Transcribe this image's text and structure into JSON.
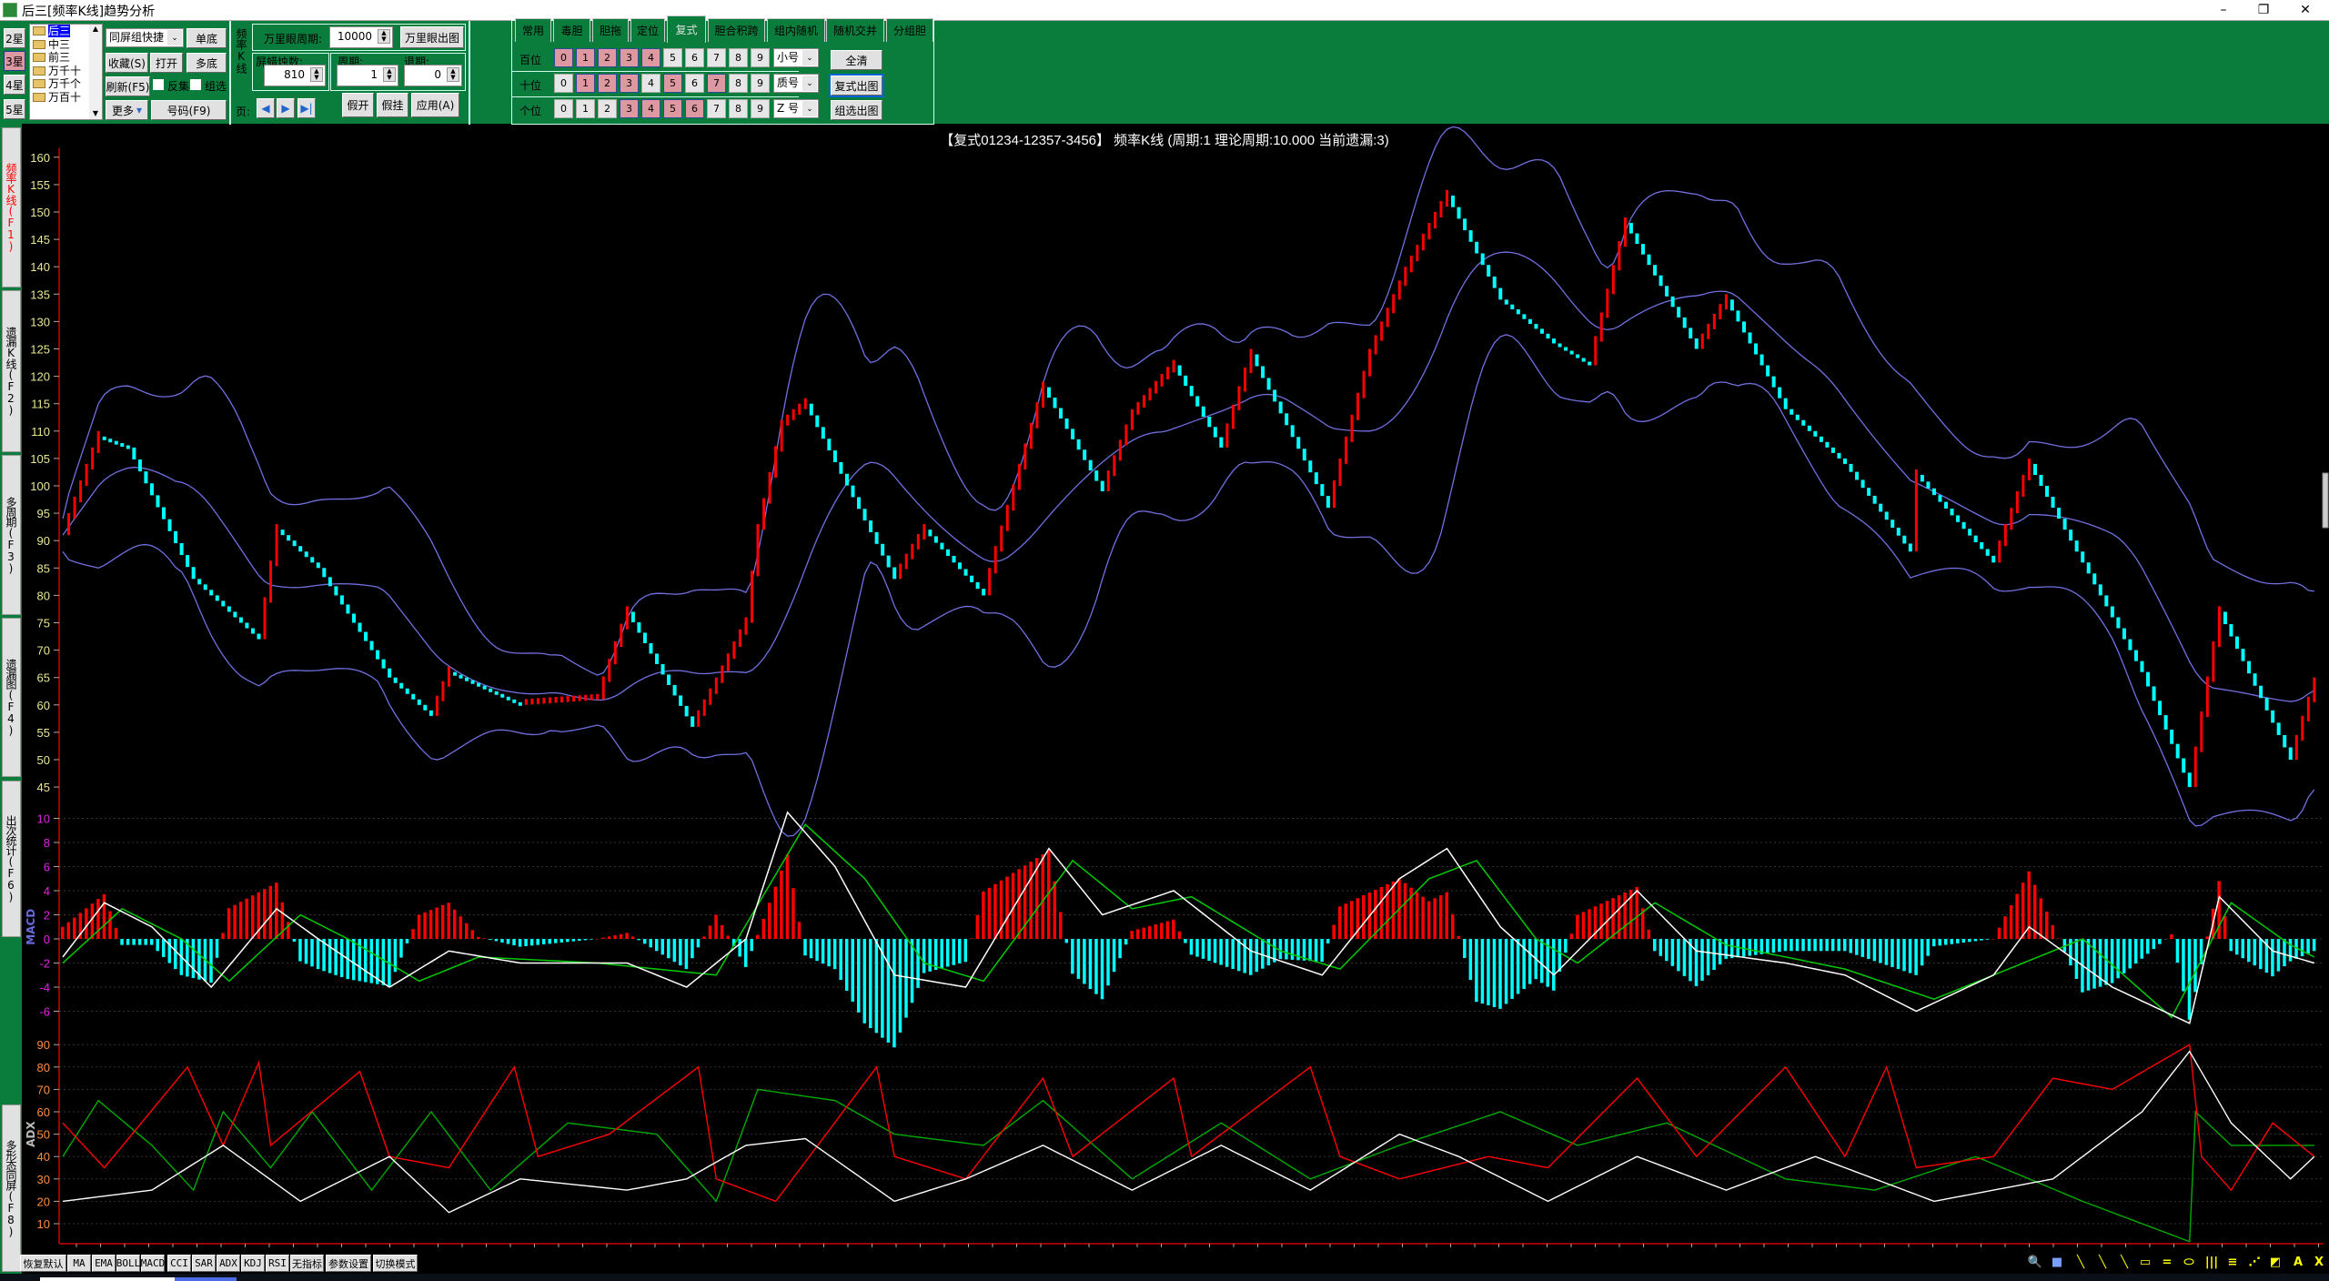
{
  "window": {
    "title": "后三[频率K线]趋势分析",
    "minimize": "–",
    "restore": "❐",
    "close": "✕"
  },
  "left_panel": {
    "stars": [
      {
        "label": "2星",
        "selected": false
      },
      {
        "label": "3星",
        "selected": true
      },
      {
        "label": "4星",
        "selected": false
      },
      {
        "label": "5星",
        "selected": false
      }
    ],
    "positions": [
      {
        "label": "后三",
        "selected": true
      },
      {
        "label": "中三"
      },
      {
        "label": "前三"
      },
      {
        "label": "万千十"
      },
      {
        "label": "万千个"
      },
      {
        "label": "万百十"
      }
    ],
    "group_dropdown": "同屏组快捷",
    "single_base": "单底",
    "favorite": "收藏(S)",
    "open": "打开",
    "multi_base": "多底",
    "refresh": "刷新(F5)",
    "inverse_set": "反集",
    "group_select": "组选",
    "more": "更多",
    "numbers": "号码(F9)"
  },
  "kline_panel": {
    "vertical_title": "频率K线",
    "telescope_period_label": "万里眼周期:",
    "telescope_period": "10000",
    "telescope_chart": "万里眼出图",
    "candles_label": "屏蜡烛数:",
    "candles": "810",
    "period_label": "周期:",
    "period": "1",
    "back_label": "退期:",
    "back": "0",
    "page_label": "页:",
    "fake_open": "假开",
    "fake_hang": "假挂",
    "apply": "应用(A)"
  },
  "tabs": [
    {
      "label": "常用"
    },
    {
      "label": "毒胆"
    },
    {
      "label": "胆拖"
    },
    {
      "label": "定位"
    },
    {
      "label": "复式",
      "active": true
    },
    {
      "label": "胆合积跨"
    },
    {
      "label": "组内随机"
    },
    {
      "label": "随机交并"
    },
    {
      "label": "分组胆"
    }
  ],
  "digit_rows": [
    {
      "label": "百位",
      "selected": [
        0,
        1,
        2,
        3,
        4
      ],
      "filter": "小号"
    },
    {
      "label": "十位",
      "selected": [
        1,
        2,
        3,
        5,
        7
      ],
      "filter": "质号"
    },
    {
      "label": "个位",
      "selected": [
        3,
        4,
        5,
        6
      ],
      "filter": "Z 号"
    }
  ],
  "digits": [
    "0",
    "1",
    "2",
    "3",
    "4",
    "5",
    "6",
    "7",
    "8",
    "9"
  ],
  "actions": {
    "clear_all": "全清",
    "compound_chart": "复式出图",
    "group_chart": "组选出图"
  },
  "side_tabs": [
    {
      "label": "频率K线(F1)",
      "active": true
    },
    {
      "label": "遗漏K线(F2)"
    },
    {
      "label": "多周期(F3)"
    },
    {
      "label": "遗漏图(F4)"
    },
    {
      "label": "出次统计(F6)"
    },
    {
      "label": "多形态同屏(F8)"
    }
  ],
  "chart_title": "【复式01234-12357-3456】 频率K线 (周期:1 理论周期:10.000 当前遗漏:3)",
  "colors": {
    "panel_green": "#0a7d3c",
    "up": "#ff0000",
    "down": "#00ffff",
    "band": "#7070e0",
    "dif": "#ffffff",
    "dea": "#00cc00",
    "adx": "#ffffff",
    "pdi": "#ff0000",
    "mdi": "#00aa00",
    "price_ticks": "#e8e890",
    "macd_ticks": "#e020e0",
    "adx_ticks": "#ff8c3c"
  },
  "chart_data": [
    {
      "type": "line",
      "name": "频率K线",
      "x_unit": "bar",
      "ylim": [
        45,
        160
      ],
      "yticks": [
        160,
        155,
        150,
        145,
        140,
        135,
        130,
        125,
        120,
        115,
        110,
        105,
        100,
        95,
        90,
        85,
        80,
        75,
        70,
        65,
        60,
        55,
        50,
        45
      ],
      "points": [
        [
          0,
          91
        ],
        [
          6,
          109
        ],
        [
          11,
          107
        ],
        [
          22,
          83
        ],
        [
          33,
          72
        ],
        [
          36,
          92
        ],
        [
          43,
          85
        ],
        [
          55,
          65
        ],
        [
          62,
          58
        ],
        [
          65,
          66
        ],
        [
          77,
          60
        ],
        [
          90,
          61
        ],
        [
          95,
          77
        ],
        [
          106,
          56
        ],
        [
          110,
          64
        ],
        [
          115,
          75
        ],
        [
          117,
          92
        ],
        [
          121,
          111
        ],
        [
          125,
          115
        ],
        [
          140,
          83
        ],
        [
          145,
          92
        ],
        [
          155,
          80
        ],
        [
          157,
          88
        ],
        [
          165,
          118
        ],
        [
          175,
          99
        ],
        [
          180,
          113
        ],
        [
          187,
          122
        ],
        [
          195,
          107
        ],
        [
          200,
          124
        ],
        [
          213,
          96
        ],
        [
          220,
          124
        ],
        [
          226,
          139
        ],
        [
          233,
          153
        ],
        [
          242,
          134
        ],
        [
          251,
          126
        ],
        [
          257,
          122
        ],
        [
          263,
          148
        ],
        [
          275,
          125
        ],
        [
          280,
          134
        ],
        [
          290,
          114
        ],
        [
          300,
          104
        ],
        [
          311,
          88
        ],
        [
          312,
          102
        ],
        [
          325,
          86
        ],
        [
          331,
          104
        ],
        [
          350,
          66
        ],
        [
          358,
          45
        ],
        [
          363,
          77
        ],
        [
          375,
          50
        ],
        [
          379,
          64
        ]
      ],
      "overlay": "BOLL"
    },
    {
      "type": "line",
      "label": "MACD",
      "ylim": [
        -7,
        10
      ],
      "yticks": [
        10,
        8,
        6,
        4,
        2,
        0,
        -2,
        -4,
        -6
      ],
      "series": [
        {
          "key": "dif",
          "points": [
            [
              0,
              -1.5
            ],
            [
              7,
              3
            ],
            [
              15,
              1
            ],
            [
              25,
              -4
            ],
            [
              36,
              2.5
            ],
            [
              43,
              0
            ],
            [
              55,
              -4
            ],
            [
              65,
              -1
            ],
            [
              77,
              -2
            ],
            [
              95,
              -2
            ],
            [
              105,
              -4
            ],
            [
              115,
              0
            ],
            [
              122,
              10.5
            ],
            [
              130,
              6
            ],
            [
              140,
              -3
            ],
            [
              152,
              -4
            ],
            [
              166,
              7.5
            ],
            [
              175,
              2
            ],
            [
              187,
              4
            ],
            [
              200,
              -1
            ],
            [
              212,
              -3
            ],
            [
              225,
              5
            ],
            [
              233,
              7.5
            ],
            [
              242,
              1
            ],
            [
              251,
              -3
            ],
            [
              265,
              4
            ],
            [
              275,
              -1
            ],
            [
              290,
              -2
            ],
            [
              300,
              -3
            ],
            [
              312,
              -6
            ],
            [
              325,
              -3
            ],
            [
              331,
              1
            ],
            [
              345,
              -4
            ],
            [
              358,
              -7
            ],
            [
              363,
              3.5
            ],
            [
              372,
              -1
            ],
            [
              379,
              -2
            ]
          ]
        },
        {
          "key": "dea",
          "points": [
            [
              0,
              -2
            ],
            [
              10,
              2.5
            ],
            [
              20,
              0
            ],
            [
              28,
              -3.5
            ],
            [
              40,
              2
            ],
            [
              48,
              0
            ],
            [
              60,
              -3.5
            ],
            [
              70,
              -1.5
            ],
            [
              90,
              -2
            ],
            [
              110,
              -3
            ],
            [
              125,
              9.5
            ],
            [
              135,
              5
            ],
            [
              145,
              -2
            ],
            [
              155,
              -3.5
            ],
            [
              170,
              6.5
            ],
            [
              180,
              2.5
            ],
            [
              190,
              3.5
            ],
            [
              205,
              -1
            ],
            [
              215,
              -2.5
            ],
            [
              230,
              5
            ],
            [
              238,
              6.5
            ],
            [
              248,
              0
            ],
            [
              255,
              -2
            ],
            [
              268,
              3
            ],
            [
              280,
              -0.5
            ],
            [
              300,
              -2.5
            ],
            [
              315,
              -5
            ],
            [
              330,
              -2
            ],
            [
              340,
              0
            ],
            [
              355,
              -6.5
            ],
            [
              365,
              3
            ],
            [
              375,
              -0.5
            ],
            [
              379,
              -1.5
            ]
          ]
        }
      ]
    },
    {
      "type": "line",
      "label": "ADX",
      "ylim": [
        5,
        95
      ],
      "yticks": [
        90,
        80,
        70,
        60,
        50,
        40,
        30,
        20,
        10
      ],
      "series": [
        {
          "key": "adx",
          "points": [
            [
              0,
              20
            ],
            [
              15,
              25
            ],
            [
              27,
              45
            ],
            [
              40,
              20
            ],
            [
              55,
              40
            ],
            [
              65,
              15
            ],
            [
              77,
              30
            ],
            [
              95,
              25
            ],
            [
              105,
              30
            ],
            [
              115,
              45
            ],
            [
              125,
              48
            ],
            [
              140,
              20
            ],
            [
              152,
              30
            ],
            [
              165,
              45
            ],
            [
              180,
              25
            ],
            [
              195,
              45
            ],
            [
              210,
              25
            ],
            [
              225,
              50
            ],
            [
              235,
              40
            ],
            [
              250,
              20
            ],
            [
              265,
              40
            ],
            [
              280,
              25
            ],
            [
              295,
              40
            ],
            [
              315,
              20
            ],
            [
              335,
              30
            ],
            [
              350,
              60
            ],
            [
              358,
              87
            ],
            [
              365,
              55
            ],
            [
              375,
              30
            ],
            [
              379,
              40
            ]
          ]
        },
        {
          "key": "pdi",
          "points": [
            [
              0,
              55
            ],
            [
              7,
              35
            ],
            [
              21,
              80
            ],
            [
              27,
              45
            ],
            [
              33,
              82
            ],
            [
              35,
              45
            ],
            [
              50,
              78
            ],
            [
              55,
              40
            ],
            [
              65,
              35
            ],
            [
              76,
              80
            ],
            [
              80,
              40
            ],
            [
              92,
              50
            ],
            [
              107,
              80
            ],
            [
              110,
              30
            ],
            [
              120,
              20
            ],
            [
              137,
              80
            ],
            [
              140,
              40
            ],
            [
              152,
              30
            ],
            [
              165,
              75
            ],
            [
              170,
              40
            ],
            [
              187,
              75
            ],
            [
              190,
              40
            ],
            [
              210,
              80
            ],
            [
              215,
              40
            ],
            [
              225,
              30
            ],
            [
              240,
              40
            ],
            [
              250,
              35
            ],
            [
              265,
              75
            ],
            [
              275,
              40
            ],
            [
              290,
              80
            ],
            [
              300,
              40
            ],
            [
              307,
              80
            ],
            [
              312,
              35
            ],
            [
              325,
              40
            ],
            [
              335,
              75
            ],
            [
              345,
              70
            ],
            [
              358,
              90
            ],
            [
              360,
              40
            ],
            [
              365,
              25
            ],
            [
              372,
              55
            ],
            [
              379,
              40
            ]
          ]
        },
        {
          "key": "mdi",
          "points": [
            [
              0,
              40
            ],
            [
              6,
              65
            ],
            [
              15,
              45
            ],
            [
              22,
              25
            ],
            [
              27,
              60
            ],
            [
              35,
              35
            ],
            [
              42,
              60
            ],
            [
              52,
              25
            ],
            [
              62,
              60
            ],
            [
              72,
              25
            ],
            [
              85,
              55
            ],
            [
              100,
              50
            ],
            [
              110,
              20
            ],
            [
              117,
              70
            ],
            [
              130,
              65
            ],
            [
              140,
              50
            ],
            [
              155,
              45
            ],
            [
              165,
              65
            ],
            [
              180,
              30
            ],
            [
              195,
              55
            ],
            [
              210,
              30
            ],
            [
              225,
              45
            ],
            [
              242,
              60
            ],
            [
              255,
              45
            ],
            [
              270,
              55
            ],
            [
              290,
              30
            ],
            [
              305,
              25
            ],
            [
              322,
              40
            ],
            [
              340,
              20
            ],
            [
              358,
              2
            ],
            [
              359,
              60
            ],
            [
              365,
              45
            ],
            [
              379,
              45
            ]
          ]
        }
      ]
    }
  ],
  "indicator_buttons": [
    "恢复默认",
    "MA",
    "EMA",
    "BOLL",
    "MACD",
    "CCI",
    "SAR",
    "ADX",
    "KDJ",
    "RSI",
    "无指标",
    "参数设置",
    "切换模式"
  ],
  "drawing_tools": [
    {
      "icon": "zoom-icon",
      "glyph": "🔍"
    },
    {
      "icon": "square-icon",
      "glyph": "■"
    },
    {
      "icon": "line-icon",
      "glyph": "╲"
    },
    {
      "icon": "segment-icon",
      "glyph": "╲"
    },
    {
      "icon": "ray-icon",
      "glyph": "╲"
    },
    {
      "icon": "rectangle-icon",
      "glyph": "▭"
    },
    {
      "icon": "parallel-icon",
      "glyph": "="
    },
    {
      "icon": "ellipse-icon",
      "glyph": "⬭"
    },
    {
      "icon": "vertical-lines-icon",
      "glyph": "|||"
    },
    {
      "icon": "horizontal-lines-icon",
      "glyph": "≡"
    },
    {
      "icon": "fan-icon",
      "glyph": "⋰"
    },
    {
      "icon": "fan-box-icon",
      "glyph": "◩"
    },
    {
      "icon": "text-icon",
      "glyph": "A"
    },
    {
      "icon": "delete-icon",
      "glyph": "X"
    }
  ]
}
